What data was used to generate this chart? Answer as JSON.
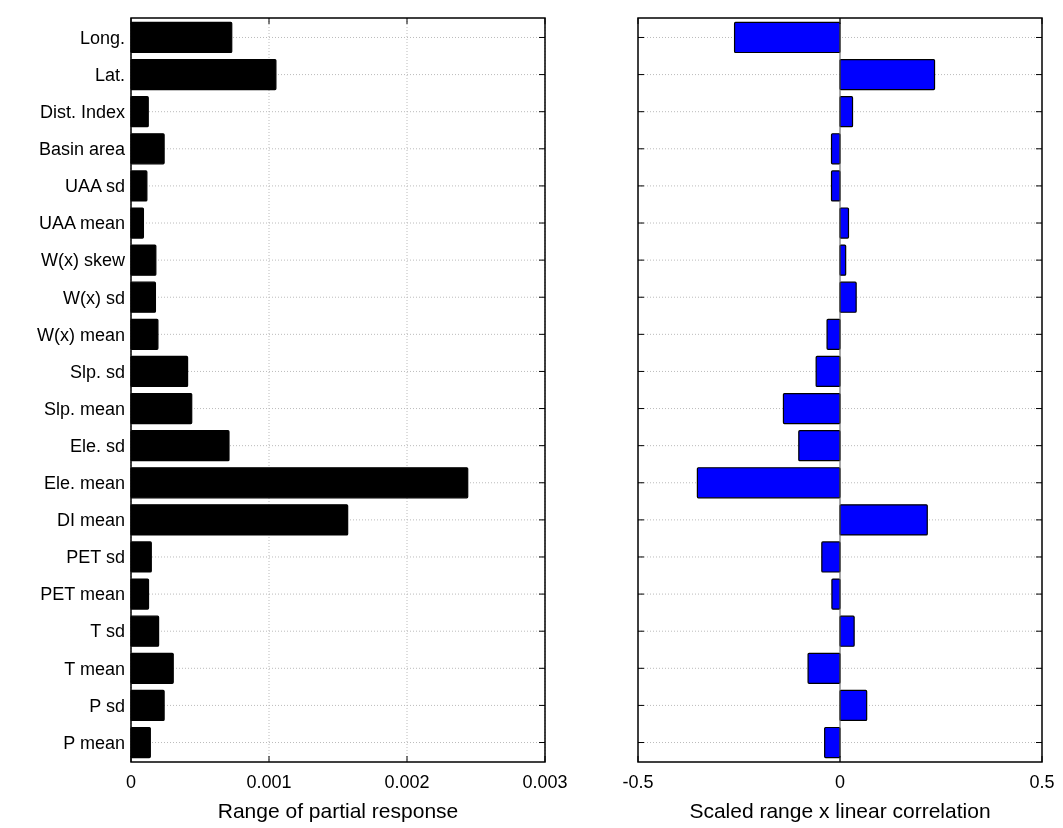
{
  "chart_data": [
    {
      "type": "bar",
      "orientation": "horizontal",
      "xlabel": "Range of partial response",
      "categories": [
        "Long.",
        "Lat.",
        "Dist. Index",
        "Basin area",
        "UAA sd",
        "UAA mean",
        "W(x) skew",
        "W(x) sd",
        "W(x) mean",
        "Slp. sd",
        "Slp. mean",
        "Ele. sd",
        "Ele. mean",
        "DI mean",
        "PET sd",
        "PET mean",
        "T sd",
        "T mean",
        "P sd",
        "P mean"
      ],
      "values": [
        0.00073,
        0.00105,
        0.000125,
        0.00024,
        0.000115,
        9e-05,
        0.00018,
        0.000177,
        0.000195,
        0.00041,
        0.00044,
        0.00071,
        0.00244,
        0.00157,
        0.000147,
        0.000127,
        0.0002,
        0.000306,
        0.00024,
        0.00014
      ],
      "color": "#000000",
      "xlim": [
        0,
        0.003
      ],
      "xticks": [
        0,
        0.001,
        0.002,
        0.003
      ],
      "grid": true
    },
    {
      "type": "bar",
      "orientation": "horizontal",
      "xlabel": "Scaled range x linear correlation",
      "categories": [
        null,
        null,
        null,
        null,
        null,
        null,
        null,
        null,
        null,
        null,
        null,
        null,
        null,
        null,
        null,
        null,
        null,
        null,
        null,
        null
      ],
      "values": [
        -0.261,
        0.234,
        0.031,
        -0.021,
        -0.021,
        0.021,
        0.014,
        0.04,
        -0.032,
        -0.059,
        -0.14,
        -0.102,
        -0.353,
        0.216,
        -0.045,
        -0.02,
        0.035,
        -0.079,
        0.066,
        -0.038
      ],
      "color": "#0000ff",
      "xlim": [
        -0.5,
        0.5
      ],
      "xticks": [
        -0.5,
        0,
        0.5
      ],
      "grid": "y",
      "tick_labels": "x"
    }
  ]
}
